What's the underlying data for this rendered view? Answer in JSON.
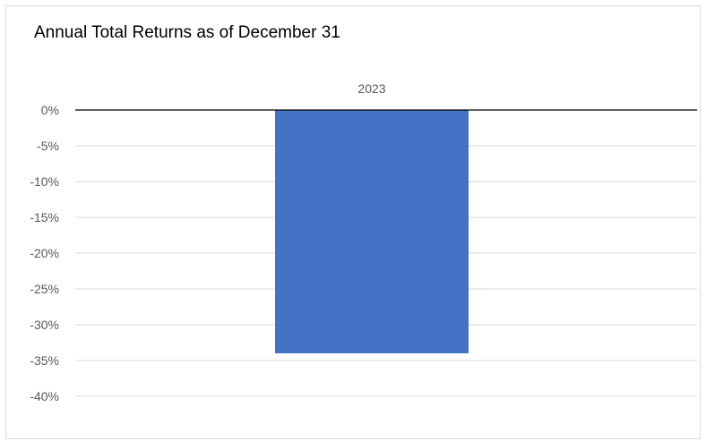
{
  "chart_data": {
    "type": "bar",
    "title": "Annual  Total Returns  as of December  31",
    "categories": [
      "2023"
    ],
    "series": [
      {
        "values": [
          -34.0
        ]
      }
    ],
    "ylim": [
      -40,
      0
    ],
    "yticks": [
      0,
      -5,
      -10,
      -15,
      -20,
      -25,
      -30,
      -35,
      -40
    ],
    "ytick_labels": [
      "0%",
      "-5%",
      "-10%",
      "-15%",
      "-20%",
      "-25%",
      "-30%",
      "-35%",
      "-40%"
    ],
    "xlabel": "",
    "ylabel": "",
    "grid": true,
    "legend": "none",
    "category_axis_position": "top",
    "colors": {
      "bar": "#4472c4",
      "grid": "#d9d9d9",
      "axis": "#000000",
      "tick_text": "#595959"
    }
  }
}
